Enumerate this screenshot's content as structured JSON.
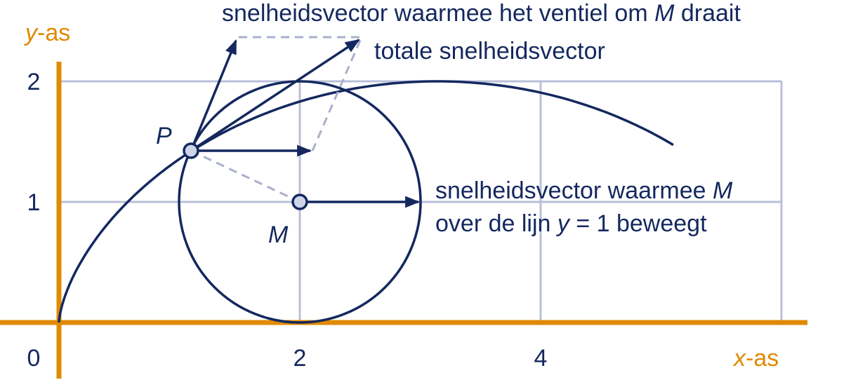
{
  "axes": {
    "x_label": {
      "var": "x",
      "suffix": "-as"
    },
    "y_label": {
      "var": "y",
      "suffix": "-as"
    },
    "x_ticks": [
      "0",
      "2",
      "4"
    ],
    "y_ticks": [
      "1",
      "2"
    ]
  },
  "points": {
    "P": "P",
    "M": "M"
  },
  "annotations": {
    "rotation_vector": {
      "before": "snelheidsvector waarmee het ventiel om ",
      "var": "M",
      "after": " draait"
    },
    "total_vector": "totale snelheidsvector",
    "translation_vector": {
      "line1_before": "snelheidsvector waarmee ",
      "line1_var": "M",
      "line2_before": "over de lijn ",
      "line2_var": "y",
      "line2_after": " = 1 beweegt"
    }
  }
}
